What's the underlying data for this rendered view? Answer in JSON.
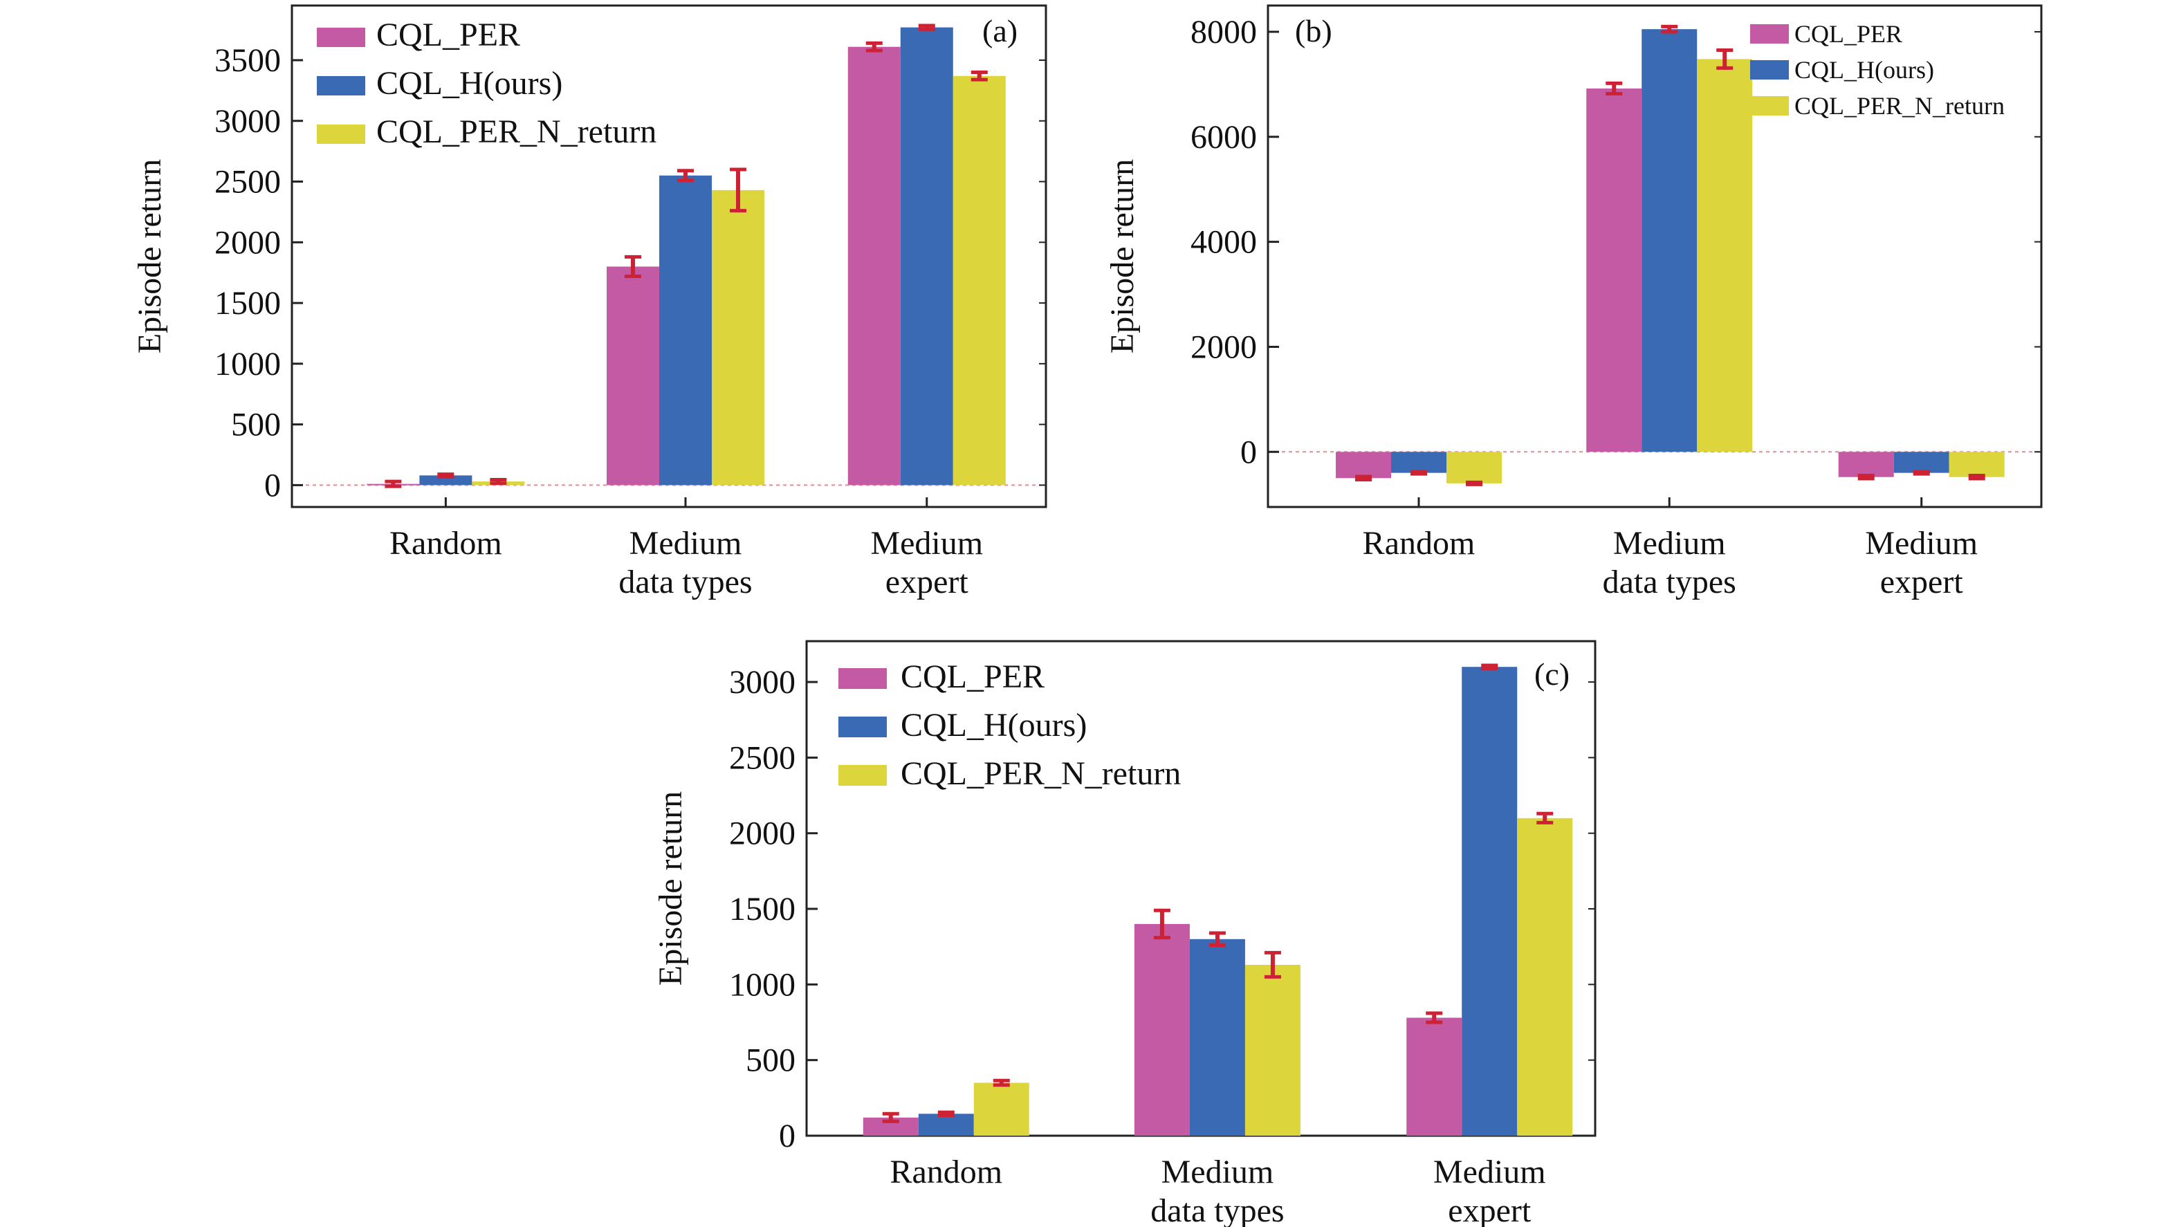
{
  "colors": {
    "CQL_PER": "#c45aa3",
    "CQL_H(ours)": "#3a6ab3",
    "CQL_PER_N_return": "#dcd63c",
    "error_bar": "#cc2233",
    "zero_line": "#e58a99"
  },
  "chart_data": [
    {
      "type": "bar",
      "panel": "(a)",
      "ylabel": "Episode return",
      "xlabel": "",
      "categories": [
        [
          "Random"
        ],
        [
          "Medium",
          "data types"
        ],
        [
          "Medium",
          "expert"
        ]
      ],
      "yticks": [
        0,
        500,
        1000,
        1500,
        2000,
        2500,
        3000,
        3500
      ],
      "ylim": [
        -180,
        3950
      ],
      "legend_position": "top-left",
      "series": [
        {
          "name": "CQL_PER",
          "values": [
            10,
            1800,
            3610
          ],
          "errors": [
            20,
            80,
            30
          ]
        },
        {
          "name": "CQL_H(ours)",
          "values": [
            80,
            2550,
            3770
          ],
          "errors": [
            10,
            40,
            15
          ]
        },
        {
          "name": "CQL_PER_N_return",
          "values": [
            30,
            2430,
            3370
          ],
          "errors": [
            15,
            170,
            30
          ]
        }
      ]
    },
    {
      "type": "bar",
      "panel": "(b)",
      "ylabel": "Episode return",
      "xlabel": "",
      "categories": [
        [
          "Random"
        ],
        [
          "Medium",
          "data types"
        ],
        [
          "Medium",
          "expert"
        ]
      ],
      "yticks": [
        0,
        2000,
        4000,
        6000,
        8000
      ],
      "ylim": [
        -1050,
        8500
      ],
      "legend_position": "top-right",
      "series": [
        {
          "name": "CQL_PER",
          "values": [
            -500,
            6920,
            -480
          ],
          "errors": [
            30,
            100,
            30
          ]
        },
        {
          "name": "CQL_H(ours)",
          "values": [
            -400,
            8050,
            -400
          ],
          "errors": [
            20,
            50,
            20
          ]
        },
        {
          "name": "CQL_PER_N_return",
          "values": [
            -600,
            7480,
            -480
          ],
          "errors": [
            20,
            170,
            30
          ]
        }
      ]
    },
    {
      "type": "bar",
      "panel": "(c)",
      "ylabel": "Episode return",
      "xlabel": "",
      "categories": [
        [
          "Random"
        ],
        [
          "Medium",
          "data types"
        ],
        [
          "Medium",
          "expert"
        ]
      ],
      "yticks": [
        0,
        500,
        1000,
        1500,
        2000,
        2500,
        3000
      ],
      "ylim": [
        0,
        3270
      ],
      "legend_position": "top-left",
      "series": [
        {
          "name": "CQL_PER",
          "values": [
            120,
            1400,
            780
          ],
          "errors": [
            25,
            90,
            30
          ]
        },
        {
          "name": "CQL_H(ours)",
          "values": [
            145,
            1300,
            3100
          ],
          "errors": [
            10,
            40,
            10
          ]
        },
        {
          "name": "CQL_PER_N_return",
          "values": [
            350,
            1130,
            2100
          ],
          "errors": [
            15,
            80,
            30
          ]
        }
      ]
    }
  ]
}
